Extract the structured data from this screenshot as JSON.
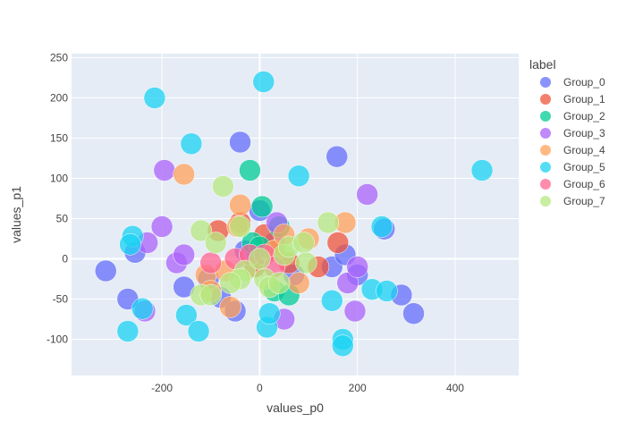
{
  "chart_data": {
    "type": "scatter",
    "xlabel": "values_p0",
    "ylabel": "values_p1",
    "xlim": [
      -385,
      530
    ],
    "ylim": [
      -145,
      255
    ],
    "x_ticks": [
      -200,
      0,
      200,
      400
    ],
    "y_ticks": [
      -100,
      -50,
      0,
      50,
      100,
      150,
      200,
      250
    ],
    "grid": true,
    "legend_title": "label",
    "legend_position": "top-right",
    "series": [
      {
        "name": "Group_0",
        "color": "#636efa",
        "points": [
          [
            -40,
            145
          ],
          [
            158,
            127
          ],
          [
            -315,
            -15
          ],
          [
            -270,
            -50
          ],
          [
            -255,
            8
          ],
          [
            -155,
            -35
          ],
          [
            -105,
            -25
          ],
          [
            -80,
            -48
          ],
          [
            -50,
            -65
          ],
          [
            0,
            60
          ],
          [
            148,
            -10
          ],
          [
            175,
            5
          ],
          [
            200,
            -20
          ],
          [
            255,
            37
          ],
          [
            290,
            -45
          ],
          [
            315,
            -68
          ],
          [
            -30,
            10
          ],
          [
            30,
            20
          ],
          [
            70,
            -20
          ]
        ]
      },
      {
        "name": "Group_1",
        "color": "#ef553b",
        "points": [
          [
            -85,
            35
          ],
          [
            -40,
            45
          ],
          [
            10,
            30
          ],
          [
            30,
            10
          ],
          [
            60,
            -5
          ],
          [
            120,
            -10
          ],
          [
            160,
            20
          ],
          [
            -10,
            -10
          ]
        ]
      },
      {
        "name": "Group_2",
        "color": "#00cc96",
        "points": [
          [
            -20,
            110
          ],
          [
            5,
            65
          ],
          [
            -15,
            20
          ],
          [
            30,
            -40
          ],
          [
            60,
            -45
          ],
          [
            0,
            15
          ],
          [
            40,
            40
          ]
        ]
      },
      {
        "name": "Group_3",
        "color": "#ab63fa",
        "points": [
          [
            -195,
            110
          ],
          [
            -200,
            40
          ],
          [
            -230,
            20
          ],
          [
            -235,
            -65
          ],
          [
            -170,
            -5
          ],
          [
            -155,
            5
          ],
          [
            35,
            45
          ],
          [
            50,
            -75
          ],
          [
            220,
            80
          ],
          [
            180,
            -30
          ],
          [
            195,
            -65
          ],
          [
            200,
            -10
          ]
        ]
      },
      {
        "name": "Group_4",
        "color": "#ffa15a",
        "points": [
          [
            -155,
            105
          ],
          [
            -40,
            67
          ],
          [
            -45,
            40
          ],
          [
            -110,
            -20
          ],
          [
            -60,
            -60
          ],
          [
            -70,
            -15
          ],
          [
            30,
            10
          ],
          [
            50,
            30
          ],
          [
            80,
            -30
          ],
          [
            100,
            25
          ],
          [
            175,
            45
          ],
          [
            -100,
            -40
          ]
        ]
      },
      {
        "name": "Group_5",
        "color": "#19d3f3",
        "points": [
          [
            -215,
            200
          ],
          [
            8,
            220
          ],
          [
            -140,
            143
          ],
          [
            80,
            103
          ],
          [
            455,
            110
          ],
          [
            -260,
            28
          ],
          [
            -265,
            18
          ],
          [
            -240,
            -62
          ],
          [
            -270,
            -90
          ],
          [
            -150,
            -70
          ],
          [
            -125,
            -90
          ],
          [
            15,
            -85
          ],
          [
            20,
            -68
          ],
          [
            148,
            -52
          ],
          [
            170,
            -100
          ],
          [
            170,
            -108
          ],
          [
            230,
            -38
          ],
          [
            260,
            -40
          ],
          [
            250,
            40
          ]
        ]
      },
      {
        "name": "Group_6",
        "color": "#ff6692",
        "points": [
          [
            -50,
            0
          ],
          [
            -20,
            5
          ],
          [
            10,
            5
          ],
          [
            30,
            -10
          ],
          [
            -100,
            -5
          ]
        ]
      },
      {
        "name": "Group_7",
        "color": "#b6e880",
        "points": [
          [
            -75,
            90
          ],
          [
            -120,
            35
          ],
          [
            -90,
            20
          ],
          [
            -40,
            40
          ],
          [
            -120,
            -45
          ],
          [
            -100,
            -45
          ],
          [
            -30,
            -15
          ],
          [
            -40,
            -25
          ],
          [
            0,
            0
          ],
          [
            10,
            -25
          ],
          [
            20,
            -35
          ],
          [
            40,
            -30
          ],
          [
            50,
            5
          ],
          [
            60,
            15
          ],
          [
            90,
            20
          ],
          [
            95,
            -5
          ],
          [
            140,
            45
          ],
          [
            -60,
            -30
          ]
        ]
      }
    ]
  }
}
